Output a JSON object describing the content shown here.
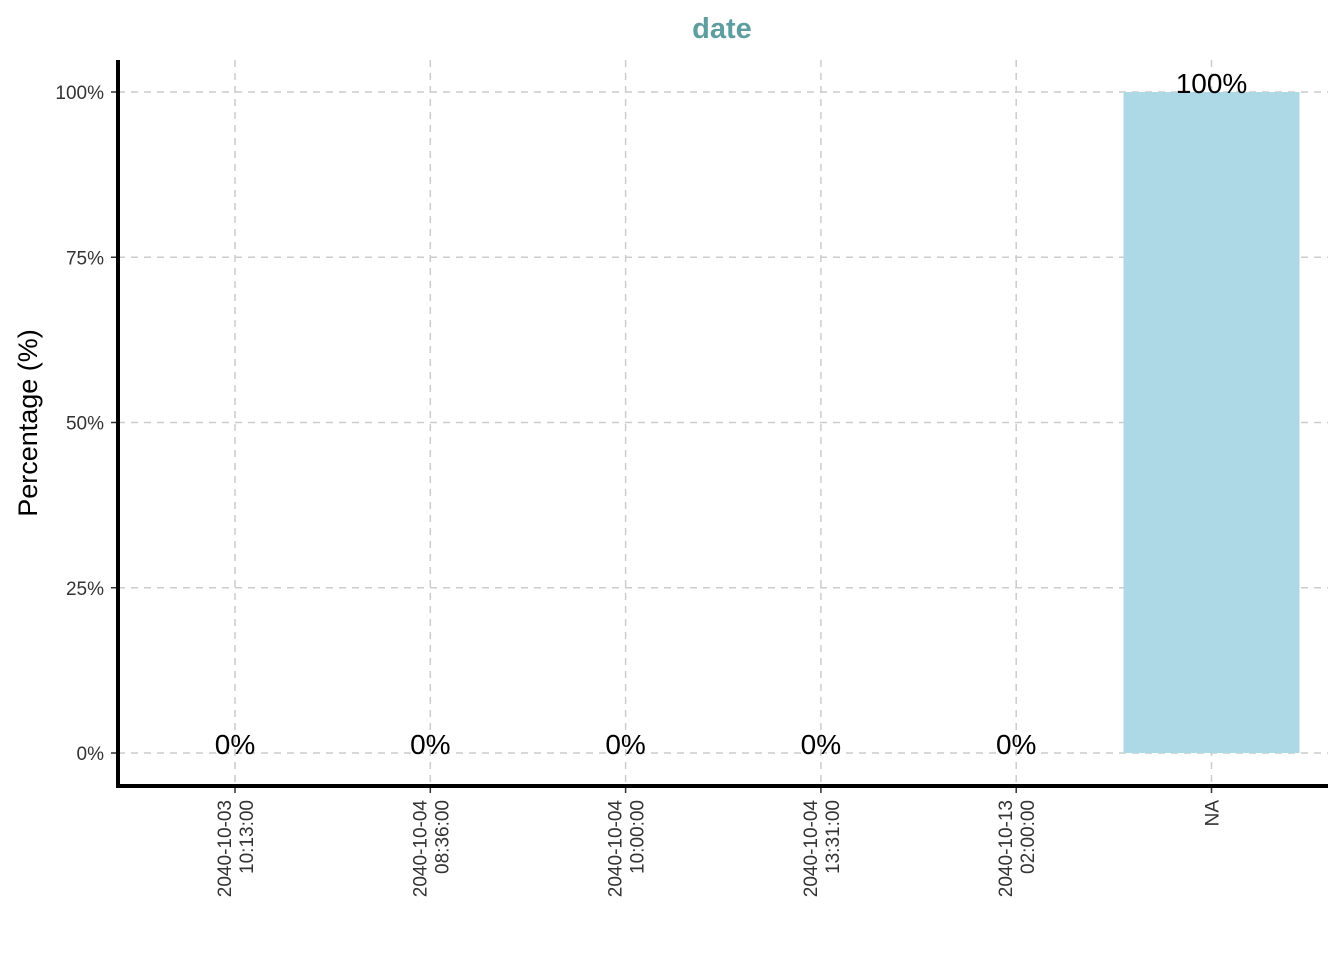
{
  "chart_data": {
    "type": "bar",
    "title": "date",
    "xlabel": "",
    "ylabel": "Percentage (%)",
    "categories": [
      [
        "2040-10-03",
        "10:13:00"
      ],
      [
        "2040-10-04",
        "08:36:00"
      ],
      [
        "2040-10-04",
        "10:00:00"
      ],
      [
        "2040-10-04",
        "13:31:00"
      ],
      [
        "2040-10-13",
        "02:00:00"
      ],
      [
        "NA"
      ]
    ],
    "values": [
      0,
      0,
      0,
      0,
      0,
      100
    ],
    "data_labels": [
      "0%",
      "0%",
      "0%",
      "0%",
      "0%",
      "100%"
    ],
    "ylim": [
      0,
      100
    ],
    "yticks": [
      0,
      25,
      50,
      75,
      100
    ],
    "ytick_labels": [
      "0%",
      "25%",
      "50%",
      "75%",
      "100%"
    ],
    "grid": true,
    "legend": "none",
    "colors": {
      "bar": "#add8e6",
      "title": "#5f9ea0"
    }
  }
}
